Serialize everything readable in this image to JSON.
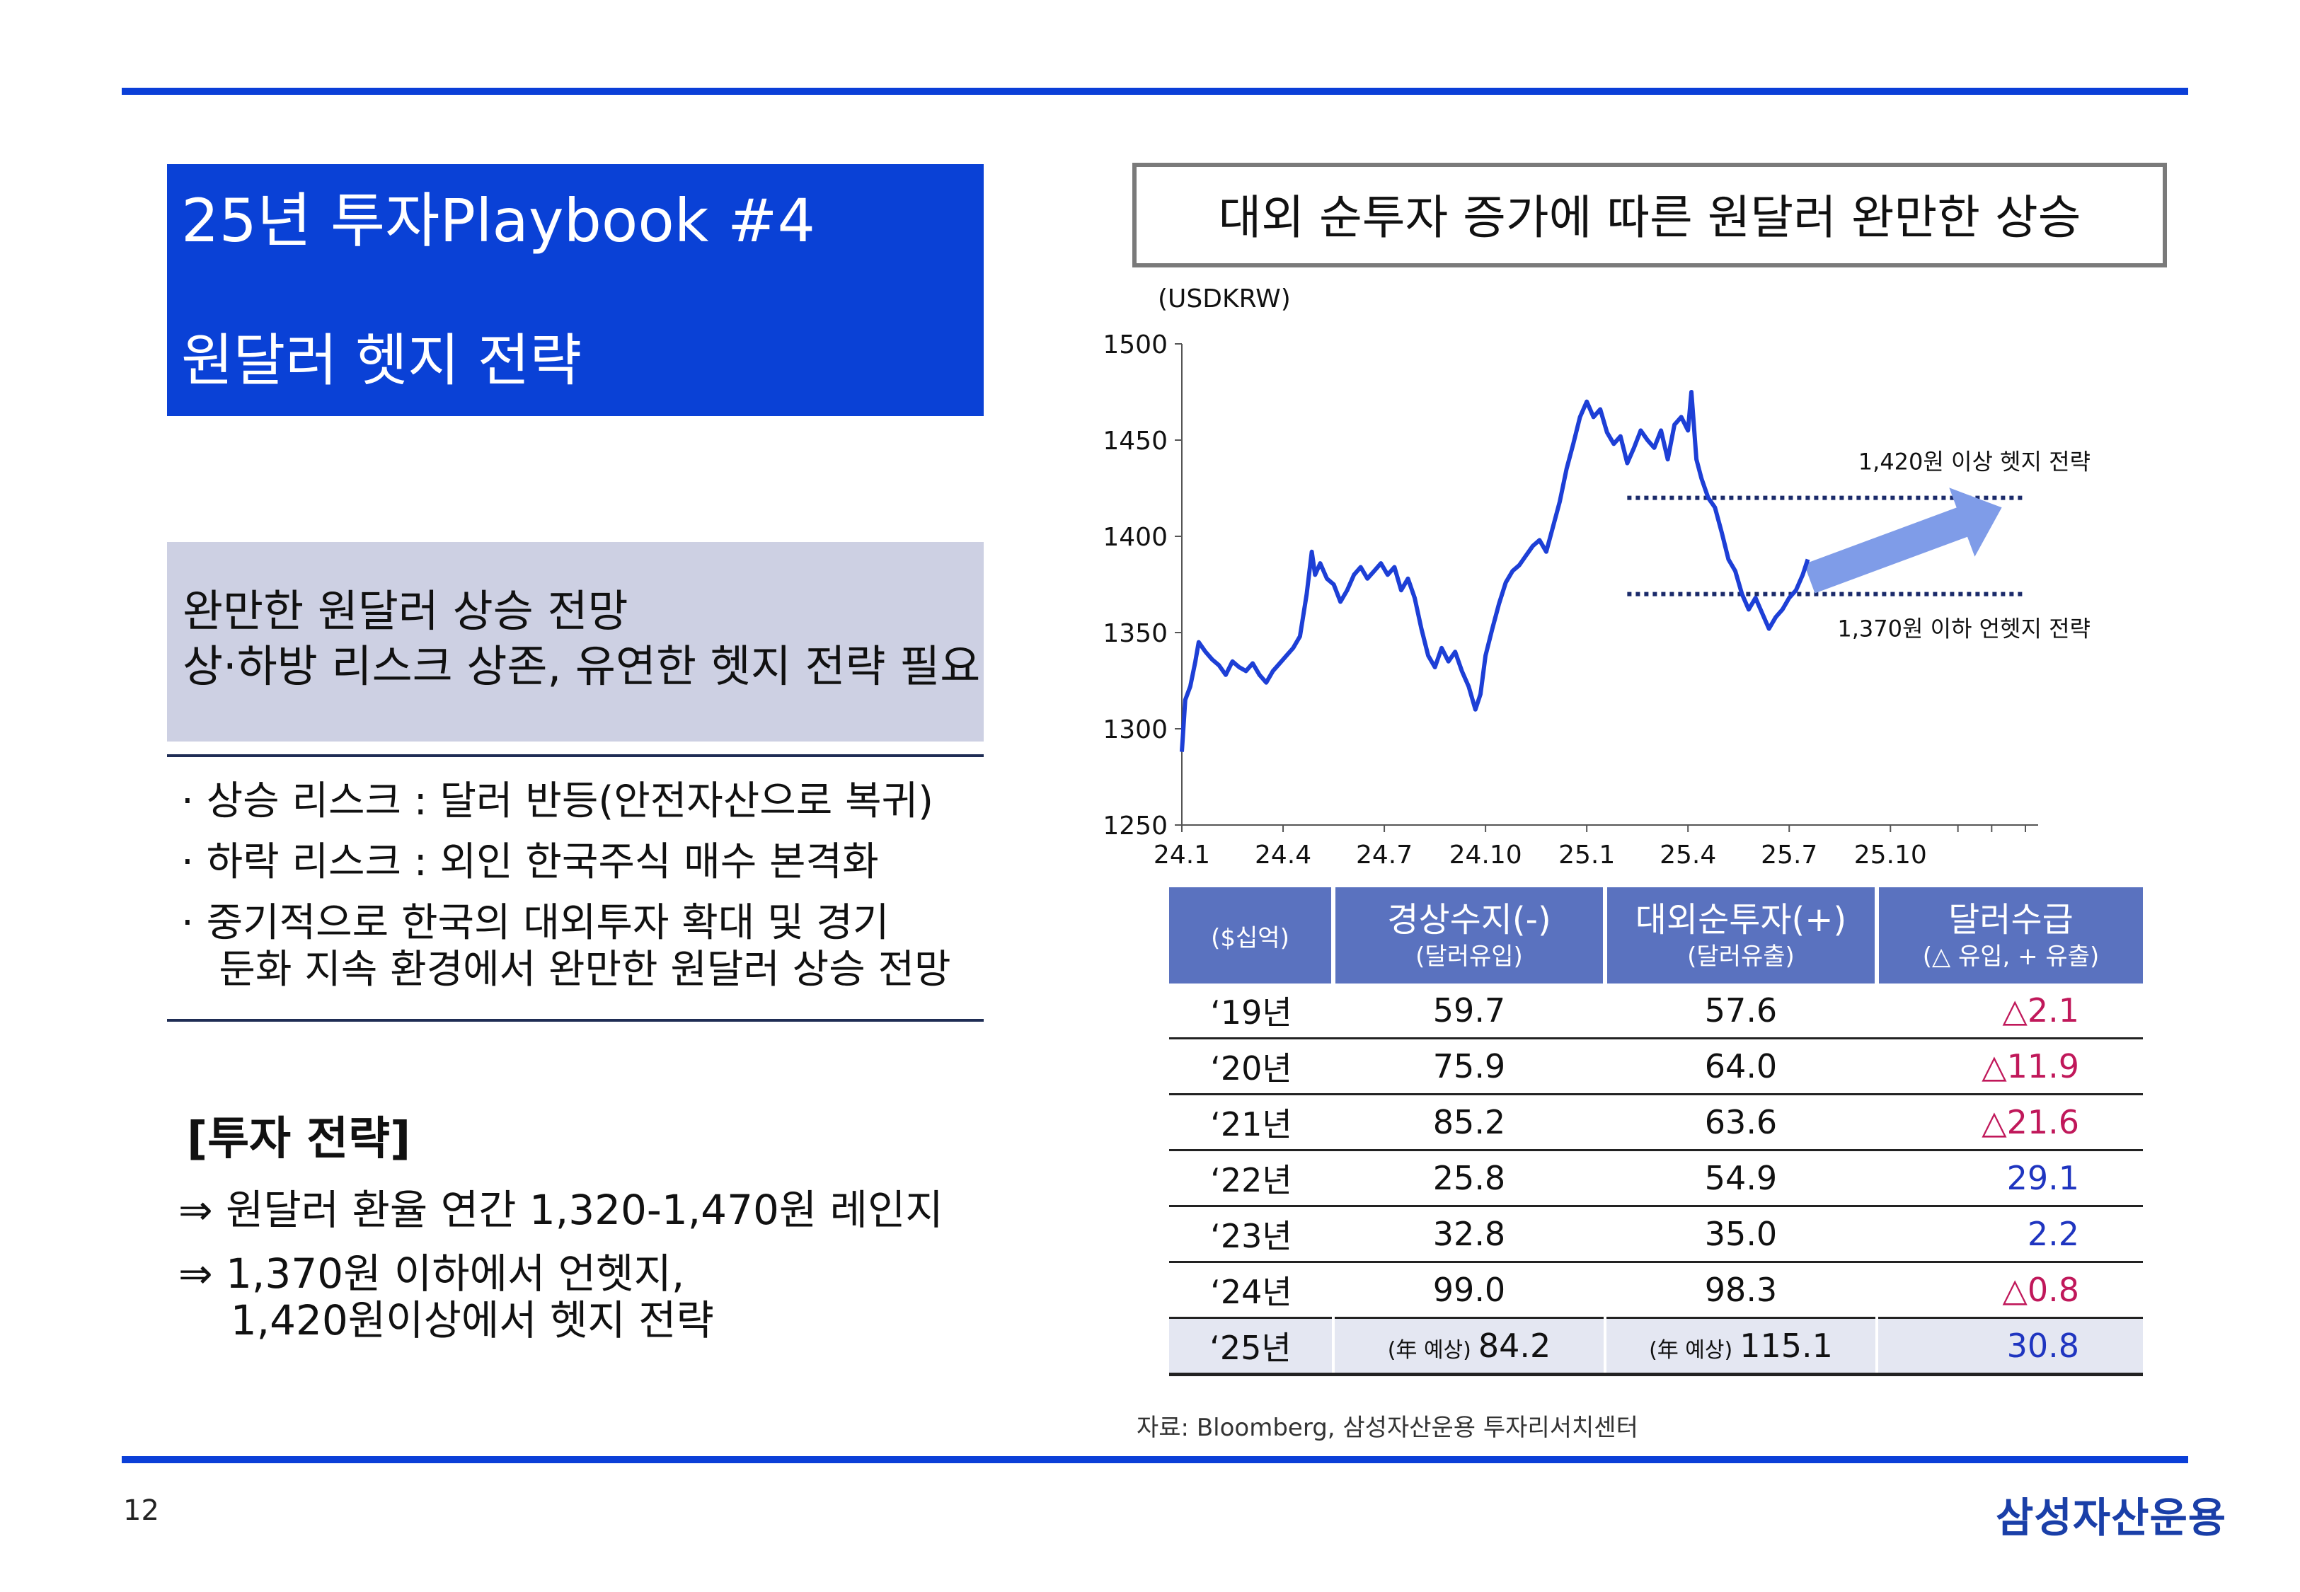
{
  "page": {
    "number": "12",
    "logo_text": "삼성자산운용"
  },
  "title": {
    "line1": "25년 투자Playbook #4",
    "line2": "원달러 헷지 전략"
  },
  "outlook": {
    "line1": "완만한 원달러 상승 전망",
    "line2": "상·하방 리스크 상존, 유연한 헷지 전략 필요"
  },
  "bullets": [
    "· 상승 리스크 : 달러 반등(안전자산으로 복귀)",
    "· 하락 리스크 : 외인 한국주식 매수 본격화",
    "· 중기적으로 한국의 대외투자 확대 및 경기",
    "   둔화 지속 환경에서 완만한 원달러 상승 전망"
  ],
  "strategy": {
    "heading": "[투자 전략]",
    "line1": "⇒ 원달러 환율 연간 1,320-1,470원 레인지",
    "line2": "⇒ 1,370원 이하에서 언헷지,",
    "line3": "    1,420원이상에서 헷지 전략"
  },
  "chart_title": "대외 순투자 증가에 따른 원달러 완만한 상승",
  "chart_data": {
    "type": "line",
    "unit_label": "(USDKRW)",
    "ylim": [
      1250,
      1500
    ],
    "yticks": [
      "1250",
      "1300",
      "1350",
      "1400",
      "1450",
      "1500"
    ],
    "xlim": [
      0,
      25
    ],
    "xticks": [
      {
        "label": "24.1",
        "x": 0
      },
      {
        "label": "24.4",
        "x": 3
      },
      {
        "label": "24.7",
        "x": 6
      },
      {
        "label": "24.10",
        "x": 9
      },
      {
        "label": "25.1",
        "x": 12
      },
      {
        "label": "25.4",
        "x": 15
      },
      {
        "label": "25.7",
        "x": 18
      },
      {
        "label": "25.10",
        "x": 21
      }
    ],
    "series": [
      {
        "color": "#1d3fd6",
        "points": [
          [
            0.0,
            1288
          ],
          [
            0.1,
            1315
          ],
          [
            0.25,
            1322
          ],
          [
            0.4,
            1335
          ],
          [
            0.5,
            1345
          ],
          [
            0.7,
            1340
          ],
          [
            0.9,
            1336
          ],
          [
            1.1,
            1333
          ],
          [
            1.3,
            1328
          ],
          [
            1.5,
            1335
          ],
          [
            1.7,
            1332
          ],
          [
            1.9,
            1330
          ],
          [
            2.1,
            1334
          ],
          [
            2.3,
            1328
          ],
          [
            2.5,
            1324
          ],
          [
            2.7,
            1330
          ],
          [
            2.9,
            1334
          ],
          [
            3.1,
            1338
          ],
          [
            3.3,
            1342
          ],
          [
            3.5,
            1348
          ],
          [
            3.7,
            1370
          ],
          [
            3.85,
            1392
          ],
          [
            3.95,
            1380
          ],
          [
            4.1,
            1386
          ],
          [
            4.3,
            1378
          ],
          [
            4.5,
            1375
          ],
          [
            4.7,
            1366
          ],
          [
            4.9,
            1372
          ],
          [
            5.1,
            1380
          ],
          [
            5.3,
            1384
          ],
          [
            5.5,
            1378
          ],
          [
            5.7,
            1382
          ],
          [
            5.9,
            1386
          ],
          [
            6.1,
            1380
          ],
          [
            6.3,
            1384
          ],
          [
            6.5,
            1372
          ],
          [
            6.7,
            1378
          ],
          [
            6.9,
            1368
          ],
          [
            7.1,
            1352
          ],
          [
            7.3,
            1338
          ],
          [
            7.5,
            1332
          ],
          [
            7.7,
            1342
          ],
          [
            7.9,
            1335
          ],
          [
            8.1,
            1340
          ],
          [
            8.3,
            1330
          ],
          [
            8.5,
            1322
          ],
          [
            8.7,
            1310
          ],
          [
            8.85,
            1318
          ],
          [
            9.0,
            1338
          ],
          [
            9.2,
            1352
          ],
          [
            9.4,
            1365
          ],
          [
            9.6,
            1376
          ],
          [
            9.8,
            1382
          ],
          [
            10.0,
            1385
          ],
          [
            10.2,
            1390
          ],
          [
            10.4,
            1395
          ],
          [
            10.6,
            1398
          ],
          [
            10.8,
            1392
          ],
          [
            11.0,
            1405
          ],
          [
            11.2,
            1418
          ],
          [
            11.4,
            1435
          ],
          [
            11.6,
            1448
          ],
          [
            11.8,
            1462
          ],
          [
            12.0,
            1470
          ],
          [
            12.2,
            1462
          ],
          [
            12.4,
            1466
          ],
          [
            12.6,
            1454
          ],
          [
            12.8,
            1448
          ],
          [
            13.0,
            1452
          ],
          [
            13.2,
            1438
          ],
          [
            13.4,
            1446
          ],
          [
            13.6,
            1455
          ],
          [
            13.8,
            1450
          ],
          [
            14.0,
            1446
          ],
          [
            14.2,
            1455
          ],
          [
            14.4,
            1440
          ],
          [
            14.6,
            1458
          ],
          [
            14.8,
            1462
          ],
          [
            15.0,
            1455
          ],
          [
            15.1,
            1475
          ],
          [
            15.25,
            1440
          ],
          [
            15.4,
            1430
          ],
          [
            15.6,
            1420
          ],
          [
            15.8,
            1415
          ],
          [
            16.0,
            1402
          ],
          [
            16.2,
            1388
          ],
          [
            16.4,
            1382
          ],
          [
            16.6,
            1370
          ],
          [
            16.8,
            1362
          ],
          [
            17.0,
            1368
          ],
          [
            17.2,
            1360
          ],
          [
            17.4,
            1352
          ],
          [
            17.6,
            1358
          ],
          [
            17.8,
            1362
          ],
          [
            18.0,
            1368
          ],
          [
            18.2,
            1372
          ],
          [
            18.4,
            1380
          ],
          [
            18.55,
            1388
          ]
        ]
      }
    ],
    "reference_lines": [
      {
        "y": 1420,
        "x_start": 13.2,
        "x_end": 25,
        "label": "1,420원 이상 헷지 전략"
      },
      {
        "y": 1370,
        "x_start": 13.2,
        "x_end": 25,
        "label": "1,370원 이하 언헷지 전략"
      }
    ],
    "trend_arrow": {
      "from": [
        18.6,
        1378
      ],
      "to": [
        24.3,
        1415
      ],
      "color": "#7f9ce8"
    },
    "grid": false
  },
  "table": {
    "headers": [
      {
        "main": "($십억)",
        "sub": ""
      },
      {
        "main": "경상수지(-)",
        "sub": "(달러유입)"
      },
      {
        "main": "대외순투자(+)",
        "sub": "(달러유출)"
      },
      {
        "main": "달러수급",
        "sub": "(△ 유입, + 유출)"
      }
    ],
    "rows": [
      {
        "year": "‘19년",
        "current_account": "59.7",
        "net_investment": "57.6",
        "balance": "△2.1",
        "sign": "neg"
      },
      {
        "year": "‘20년",
        "current_account": "75.9",
        "net_investment": "64.0",
        "balance": "△11.9",
        "sign": "neg"
      },
      {
        "year": "‘21년",
        "current_account": "85.2",
        "net_investment": "63.6",
        "balance": "△21.6",
        "sign": "neg"
      },
      {
        "year": "‘22년",
        "current_account": "25.8",
        "net_investment": "54.9",
        "balance": "29.1",
        "sign": "pos"
      },
      {
        "year": "‘23년",
        "current_account": "32.8",
        "net_investment": "35.0",
        "balance": "2.2",
        "sign": "pos"
      },
      {
        "year": "‘24년",
        "current_account": "99.0",
        "net_investment": "98.3",
        "balance": "△0.8",
        "sign": "neg"
      },
      {
        "year": "‘25년",
        "current_account": "84.2",
        "net_investment": "115.1",
        "balance": "30.8",
        "sign": "pos",
        "estimate_label": "(年 예상)"
      }
    ]
  },
  "source": "자료: Bloomberg, 삼성자산운용 투자리서치센터"
}
